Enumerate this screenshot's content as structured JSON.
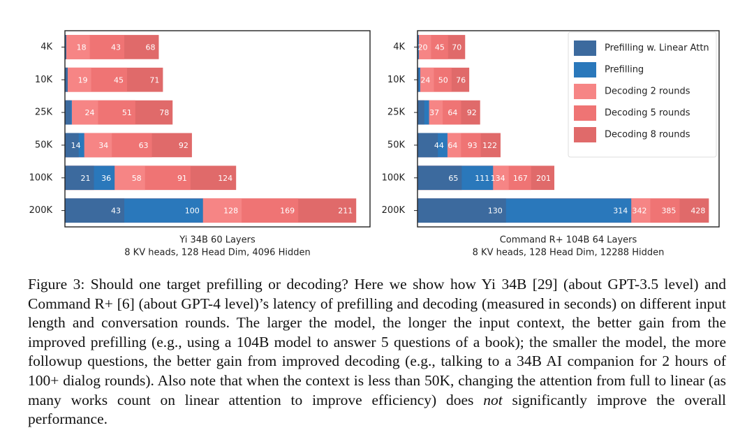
{
  "chart_data": [
    {
      "type": "bar",
      "orientation": "horizontal",
      "categories": [
        "4K",
        "10K",
        "25K",
        "50K",
        "100K",
        "200K"
      ],
      "series": [
        {
          "name": "Prefilling w. Linear Attn",
          "color": "#3c6a9e",
          "values": [
            1,
            2,
            4,
            10,
            21,
            43
          ],
          "value_labels": [
            null,
            null,
            null,
            null,
            "21",
            "43"
          ]
        },
        {
          "name": "Prefilling",
          "color": "#2a78bb",
          "values": [
            1,
            2,
            5,
            14,
            36,
            100
          ],
          "value_labels": [
            null,
            null,
            null,
            "14",
            "36",
            "100"
          ]
        },
        {
          "name": "Decoding 2 rounds",
          "color": "#f68585",
          "values": [
            18,
            19,
            24,
            34,
            58,
            128
          ],
          "value_labels": [
            "18",
            "19",
            "24",
            "34",
            "58",
            "128"
          ]
        },
        {
          "name": "Decoding 5 rounds",
          "color": "#ef7474",
          "values": [
            43,
            45,
            51,
            63,
            91,
            169
          ],
          "value_labels": [
            "43",
            "45",
            "51",
            "63",
            "91",
            "169"
          ]
        },
        {
          "name": "Decoding 8 rounds",
          "color": "#e06a6a",
          "values": [
            68,
            71,
            78,
            92,
            124,
            211
          ],
          "value_labels": [
            "68",
            "71",
            "78",
            "92",
            "124",
            "211"
          ]
        }
      ],
      "xlim": [
        0,
        221
      ],
      "xlabel": [
        "Yi 34B 60 Layers",
        "8 KV heads, 128 Head Dim, 4096 Hidden"
      ]
    },
    {
      "type": "bar",
      "orientation": "horizontal",
      "categories": [
        "4K",
        "10K",
        "25K",
        "50K",
        "100K",
        "200K"
      ],
      "series": [
        {
          "name": "Prefilling w. Linear Attn",
          "color": "#3c6a9e",
          "values": [
            1,
            2,
            10,
            30,
            65,
            130
          ],
          "value_labels": [
            null,
            null,
            null,
            null,
            "65",
            "130"
          ]
        },
        {
          "name": "Prefilling",
          "color": "#2a78bb",
          "values": [
            2,
            4,
            17,
            44,
            111,
            314
          ],
          "value_labels": [
            null,
            null,
            null,
            "44",
            "111",
            "314"
          ]
        },
        {
          "name": "Decoding 2 rounds",
          "color": "#f68585",
          "values": [
            20,
            24,
            37,
            64,
            134,
            342
          ],
          "value_labels": [
            "20",
            "24",
            "37",
            "64",
            "134",
            "342"
          ]
        },
        {
          "name": "Decoding 5 rounds",
          "color": "#ef7474",
          "values": [
            45,
            50,
            64,
            93,
            167,
            385
          ],
          "value_labels": [
            "45",
            "50",
            "64",
            "93",
            "167",
            "385"
          ]
        },
        {
          "name": "Decoding 8 rounds",
          "color": "#e06a6a",
          "values": [
            70,
            76,
            92,
            122,
            201,
            428
          ],
          "value_labels": [
            "70",
            "76",
            "92",
            "122",
            "201",
            "428"
          ]
        }
      ],
      "xlim": [
        0,
        443
      ],
      "xlabel": [
        "Command R+ 104B 64 Layers",
        "8 KV heads, 128 Head Dim, 12288 Hidden"
      ],
      "legend": "upper right"
    }
  ],
  "caption": {
    "label": "Figure 3:",
    "text": "Should one target prefilling or decoding? Here we show how Yi 34B [29] (about GPT-3.5 level) and Command R+ [6] (about GPT-4 level)’s latency of prefilling and decoding (measured in seconds) on different input length and conversation rounds. The larger the model, the longer the input context, the better gain from the improved prefilling (e.g., using a 104B model to answer 5 questions of a book); the smaller the model, the more followup questions, the better gain from improved decoding (e.g., talking to a 34B AI companion for 2 hours of 100+ dialog rounds). Also note that when the context is less than 50K, changing the attention from full to linear (as many works count on linear attention to improve efficiency) does",
    "emphasis": "not",
    "text_end": "significantly improve the overall performance."
  }
}
